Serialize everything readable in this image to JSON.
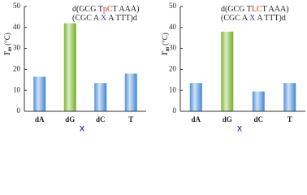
{
  "chart_data": [
    {
      "type": "bar",
      "ylabel": {
        "symbol": "T",
        "subscript": "m",
        "unit": "(°C)"
      },
      "xlabel": "X",
      "xlabel_color": "#2a3fc0",
      "annotation": [
        [
          {
            "text": "d(GCG T"
          },
          {
            "text": "pC",
            "color": "#d42a2a"
          },
          {
            "text": "T AAA)"
          }
        ],
        [
          {
            "text": "(CGC A "
          },
          {
            "text": "X",
            "color": "#2a3fc0"
          },
          {
            "text": " A TTT)d"
          }
        ]
      ],
      "categories": [
        "dA",
        "dG",
        "dC",
        "T"
      ],
      "values": [
        16.5,
        42,
        13.5,
        18
      ],
      "colors": [
        "#3f86d6",
        "#6fb01e",
        "#3f86d6",
        "#3f86d6"
      ],
      "ylim": [
        0,
        50
      ],
      "yticks": [
        0,
        10,
        20,
        30,
        40,
        50
      ]
    },
    {
      "type": "bar",
      "ylabel": {
        "symbol": "T",
        "subscript": "m",
        "unit": "(°C)"
      },
      "xlabel": "X",
      "xlabel_color": "#2a3fc0",
      "annotation": [
        [
          {
            "text": "d(GCG T"
          },
          {
            "text": "LC",
            "color": "#d42a2a"
          },
          {
            "text": "T AAA)"
          }
        ],
        [
          {
            "text": "(CGC A "
          },
          {
            "text": "X",
            "color": "#2a3fc0"
          },
          {
            "text": " A TTT)d"
          }
        ]
      ],
      "categories": [
        "dA",
        "dG",
        "dC",
        "T"
      ],
      "values": [
        13.5,
        38,
        9.5,
        13.5
      ],
      "colors": [
        "#3f86d6",
        "#6fb01e",
        "#3f86d6",
        "#3f86d6"
      ],
      "ylim": [
        0,
        50
      ],
      "yticks": [
        0,
        10,
        20,
        30,
        40,
        50
      ]
    }
  ]
}
